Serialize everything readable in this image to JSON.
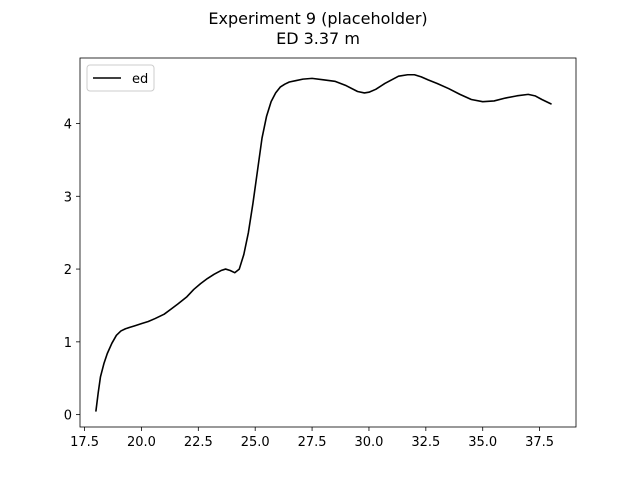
{
  "chart_data": {
    "type": "line",
    "title": "Experiment 9 (placeholder)",
    "subtitle": "ED 3.37 m",
    "xlabel": "",
    "ylabel": "",
    "xlim": [
      17.3,
      39.1
    ],
    "ylim": [
      -0.17,
      4.9
    ],
    "grid": false,
    "legend_position": "top-left",
    "x_ticks": [
      17.5,
      20.0,
      22.5,
      25.0,
      27.5,
      30.0,
      32.5,
      35.0,
      37.5
    ],
    "x_tick_labels": [
      "17.5",
      "20.0",
      "22.5",
      "25.0",
      "27.5",
      "30.0",
      "32.5",
      "35.0",
      "37.5"
    ],
    "y_ticks": [
      0,
      1,
      2,
      3,
      4
    ],
    "y_tick_labels": [
      "0",
      "1",
      "2",
      "3",
      "4"
    ],
    "series": [
      {
        "name": "ed",
        "color": "#000000",
        "x": [
          18.0,
          18.1,
          18.2,
          18.35,
          18.5,
          18.7,
          18.9,
          19.1,
          19.3,
          19.5,
          19.7,
          20.0,
          20.3,
          20.6,
          21.0,
          21.3,
          21.6,
          22.0,
          22.3,
          22.6,
          22.9,
          23.2,
          23.5,
          23.7,
          23.9,
          24.1,
          24.3,
          24.5,
          24.7,
          24.9,
          25.1,
          25.3,
          25.5,
          25.7,
          25.9,
          26.1,
          26.3,
          26.5,
          26.8,
          27.1,
          27.5,
          28.0,
          28.5,
          29.0,
          29.5,
          29.8,
          30.0,
          30.3,
          30.7,
          31.0,
          31.3,
          31.7,
          32.0,
          32.3,
          32.6,
          33.0,
          33.5,
          34.0,
          34.5,
          35.0,
          35.5,
          36.0,
          36.5,
          37.0,
          37.3,
          37.6,
          38.0
        ],
        "y": [
          0.05,
          0.3,
          0.52,
          0.7,
          0.84,
          0.98,
          1.09,
          1.15,
          1.18,
          1.2,
          1.22,
          1.25,
          1.28,
          1.32,
          1.38,
          1.45,
          1.52,
          1.62,
          1.72,
          1.8,
          1.87,
          1.93,
          1.98,
          2.0,
          1.98,
          1.95,
          2.0,
          2.2,
          2.5,
          2.9,
          3.35,
          3.8,
          4.1,
          4.3,
          4.42,
          4.5,
          4.54,
          4.57,
          4.59,
          4.61,
          4.62,
          4.6,
          4.58,
          4.52,
          4.44,
          4.42,
          4.43,
          4.47,
          4.55,
          4.6,
          4.65,
          4.67,
          4.67,
          4.64,
          4.6,
          4.55,
          4.48,
          4.4,
          4.33,
          4.3,
          4.31,
          4.35,
          4.38,
          4.4,
          4.38,
          4.33,
          4.27
        ]
      }
    ]
  }
}
